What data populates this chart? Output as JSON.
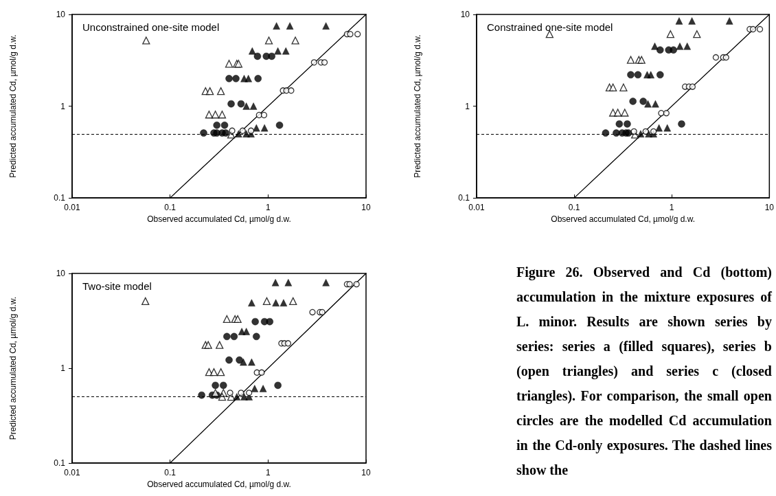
{
  "chart_data": [
    {
      "type": "scatter",
      "title": "Unconstrained one-site model",
      "xlabel": "Observed accumulated Cd, µmol/g d.w.",
      "ylabel": "Predicted accumulated Cd, µmol/g d.w.",
      "log": "xy",
      "xlim": [
        0.01,
        10
      ],
      "ylim": [
        0.1,
        10
      ],
      "xticks": [
        0.01,
        0.1,
        1,
        10
      ],
      "yticks": [
        0.1,
        1,
        10
      ],
      "grid": false,
      "legend": false,
      "ref_lines": [
        {
          "axis": "y",
          "value": 0.5,
          "line_style": "dashed",
          "color": "#000000"
        }
      ],
      "series": [
        {
          "color": "#000000",
          "marker": "circle",
          "x": [
            0.22,
            0.28,
            0.3,
            0.34,
            0.37,
            0.3,
            0.36,
            0.42,
            0.53,
            0.4,
            0.47,
            0.79,
            0.78,
            0.96,
            1.09,
            1.31
          ],
          "values": [
            0.51,
            0.51,
            0.51,
            0.51,
            0.51,
            0.62,
            0.62,
            1.06,
            1.06,
            2.0,
            2.0,
            2.0,
            3.5,
            3.5,
            3.5,
            0.62
          ]
        },
        {
          "color": "#ffffff",
          "marker": "triangle",
          "x": [
            0.057,
            1.02,
            1.9,
            0.4,
            0.48,
            0.5,
            0.23,
            0.255,
            0.33,
            0.25,
            0.29,
            0.34,
            0.42
          ],
          "values": [
            5.2,
            5.2,
            5.2,
            2.9,
            2.9,
            2.9,
            1.46,
            1.46,
            1.46,
            0.81,
            0.81,
            0.81,
            0.49
          ]
        },
        {
          "color": "#000000",
          "marker": "triangle",
          "x": [
            1.22,
            1.67,
            3.9,
            0.69,
            1.26,
            1.52,
            0.57,
            0.63,
            0.6,
            0.71,
            0.76,
            0.92,
            0.5,
            0.6,
            0.67
          ],
          "values": [
            7.5,
            7.5,
            7.5,
            4.0,
            4.0,
            4.0,
            2.0,
            2.0,
            1.0,
            1.0,
            0.58,
            0.58,
            0.5,
            0.5,
            0.5
          ]
        },
        {
          "color": "#ffffff",
          "marker": "circle",
          "x": [
            0.43,
            0.55,
            0.67,
            0.81,
            0.91,
            1.42,
            1.54,
            1.72,
            2.95,
            3.47,
            3.77,
            6.4,
            6.9,
            8.2
          ],
          "values": [
            0.54,
            0.54,
            0.54,
            0.8,
            0.8,
            1.48,
            1.48,
            1.48,
            3.0,
            3.0,
            3.0,
            6.1,
            6.1,
            6.1
          ]
        },
        {
          "type": "line",
          "color": "#000000",
          "marker": "none",
          "line_style": "solid",
          "x": [
            0.1,
            10
          ],
          "values": [
            0.1,
            10
          ]
        }
      ]
    },
    {
      "type": "scatter",
      "title": "Constrained one-site model",
      "xlabel": "Observed accumulated Cd, µmol/g d.w.",
      "ylabel": "Predicted accumulated Cd, µmol/g d.w.",
      "log": "xy",
      "xlim": [
        0.01,
        10
      ],
      "ylim": [
        0.1,
        10
      ],
      "xticks": [
        0.01,
        0.1,
        1,
        10
      ],
      "yticks": [
        0.1,
        1,
        10
      ],
      "grid": false,
      "legend": false,
      "ref_lines": [
        {
          "axis": "y",
          "value": 0.5,
          "line_style": "dashed",
          "color": "#000000"
        }
      ],
      "series": [
        {
          "color": "#000000",
          "marker": "circle",
          "x": [
            0.21,
            0.27,
            0.31,
            0.34,
            0.36,
            0.29,
            0.35,
            0.4,
            0.51,
            0.38,
            0.45,
            0.76,
            0.76,
            0.93,
            1.04,
            1.26
          ],
          "values": [
            0.51,
            0.51,
            0.51,
            0.51,
            0.51,
            0.64,
            0.64,
            1.13,
            1.13,
            2.2,
            2.2,
            2.2,
            4.1,
            4.1,
            4.1,
            0.64
          ]
        },
        {
          "color": "#ffffff",
          "marker": "triangle",
          "x": [
            0.056,
            0.97,
            1.81,
            0.38,
            0.46,
            0.49,
            0.23,
            0.25,
            0.32,
            0.25,
            0.28,
            0.33,
            0.42
          ],
          "values": [
            6.1,
            6.1,
            6.1,
            3.2,
            3.2,
            3.2,
            1.6,
            1.6,
            1.6,
            0.85,
            0.85,
            0.85,
            0.49
          ]
        },
        {
          "color": "#000000",
          "marker": "triangle",
          "x": [
            1.19,
            1.61,
            3.9,
            0.67,
            1.21,
            1.44,
            0.56,
            0.61,
            0.57,
            0.68,
            0.74,
            0.9,
            0.48,
            0.58,
            0.65
          ],
          "values": [
            8.5,
            8.5,
            8.5,
            4.5,
            4.5,
            4.5,
            2.2,
            2.2,
            1.06,
            1.06,
            0.58,
            0.58,
            0.5,
            0.5,
            0.5
          ]
        },
        {
          "color": "#ffffff",
          "marker": "circle",
          "x": [
            0.41,
            0.54,
            0.65,
            0.78,
            0.88,
            1.37,
            1.5,
            1.63,
            2.83,
            3.37,
            3.6,
            6.3,
            6.8,
            8.0
          ],
          "values": [
            0.53,
            0.53,
            0.53,
            0.84,
            0.84,
            1.63,
            1.63,
            1.63,
            3.4,
            3.4,
            3.4,
            6.9,
            6.9,
            6.9
          ]
        },
        {
          "type": "line",
          "color": "#000000",
          "marker": "none",
          "line_style": "solid",
          "x": [
            0.1,
            10
          ],
          "values": [
            0.1,
            10
          ]
        }
      ]
    },
    {
      "type": "scatter",
      "title": "Two-site model",
      "xlabel": "Observed accumulated Cd, µmol/g d.w.",
      "ylabel": "Predicted accumulated Cd, µmol/g d.w.",
      "log": "xy",
      "xlim": [
        0.01,
        10
      ],
      "ylim": [
        0.1,
        10
      ],
      "xticks": [
        0.01,
        0.1,
        1,
        10
      ],
      "yticks": [
        0.1,
        1,
        10
      ],
      "grid": false,
      "legend": false,
      "ref_lines": [
        {
          "axis": "y",
          "value": 0.5,
          "line_style": "dashed",
          "color": "#000000"
        }
      ],
      "series": [
        {
          "color": "#000000",
          "marker": "circle",
          "x": [
            0.21,
            0.27,
            0.3,
            0.29,
            0.35,
            0.4,
            0.51,
            0.38,
            0.45,
            0.76,
            0.74,
            0.92,
            1.04,
            1.26
          ],
          "values": [
            0.52,
            0.52,
            0.52,
            0.66,
            0.66,
            1.22,
            1.22,
            2.16,
            2.16,
            2.16,
            3.1,
            3.1,
            3.1,
            0.66
          ]
        },
        {
          "color": "#ffffff",
          "marker": "triangle",
          "x": [
            0.056,
            0.97,
            1.8,
            0.38,
            0.46,
            0.49,
            0.23,
            0.245,
            0.32,
            0.25,
            0.28,
            0.33,
            0.29,
            0.35,
            0.34,
            0.42
          ],
          "values": [
            5.1,
            5.1,
            5.1,
            3.3,
            3.3,
            3.3,
            1.76,
            1.76,
            1.76,
            0.91,
            0.91,
            0.91,
            0.55,
            0.55,
            0.5,
            0.5
          ]
        },
        {
          "color": "#000000",
          "marker": "triangle",
          "x": [
            1.19,
            1.61,
            3.9,
            0.68,
            1.2,
            1.44,
            0.54,
            0.6,
            0.56,
            0.68,
            0.73,
            0.89,
            0.48,
            0.57,
            0.64
          ],
          "values": [
            8.0,
            8.0,
            8.0,
            4.9,
            4.9,
            4.9,
            2.44,
            2.44,
            1.16,
            1.16,
            0.61,
            0.61,
            0.5,
            0.5,
            0.5
          ]
        },
        {
          "color": "#ffffff",
          "marker": "circle",
          "x": [
            0.41,
            0.53,
            0.64,
            0.77,
            0.86,
            1.37,
            1.47,
            1.6,
            2.84,
            3.38,
            3.57,
            6.4,
            6.8,
            8.0
          ],
          "values": [
            0.55,
            0.55,
            0.55,
            0.9,
            0.9,
            1.83,
            1.83,
            1.83,
            3.9,
            3.9,
            3.9,
            7.7,
            7.7,
            7.7
          ]
        },
        {
          "type": "line",
          "color": "#000000",
          "marker": "none",
          "line_style": "solid",
          "x": [
            0.1,
            10
          ],
          "values": [
            0.1,
            10
          ]
        }
      ]
    },
    {
      "type": "other",
      "annotations": [
        "Figure 26. Observed and Cd (bottom) accumulation in the mixture exposures of L. minor. Results are shown series by series: series a (filled squares), series b (open triangles) and series c (closed triangles). For comparison, the small open circles are the modelled Cd accumulation in the Cd-only exposures. The dashed lines show the"
      ]
    }
  ]
}
